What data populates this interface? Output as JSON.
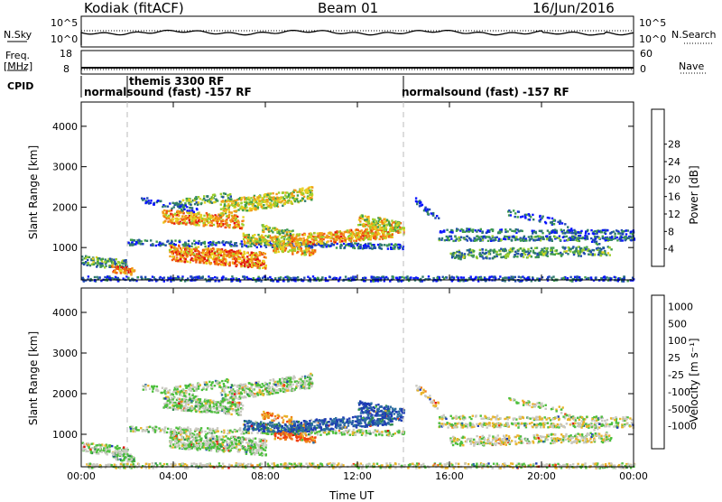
{
  "header": {
    "station": "Kodiak (fitACF)",
    "beam": "Beam 01",
    "date": "16/Jun/2016"
  },
  "side_labels": {
    "nsky": "N.Sky",
    "freq": "Freq.",
    "freq_unit": "[MHz]",
    "cpid": "CPID",
    "nsearch": "N.Search",
    "nave": "Nave"
  },
  "noise_panel": {
    "left_ticks": [
      "10^5",
      "10^0"
    ],
    "right_ticks": [
      "10^5",
      "10^0"
    ]
  },
  "freq_panel": {
    "left_ticks": [
      "18",
      "8"
    ],
    "right_ticks": [
      "60",
      "0"
    ]
  },
  "cpid_panel": {
    "labels": [
      "normalsound (fast) -157 RF",
      "themis 3300 RF",
      "normalsound (fast) -157 RF"
    ]
  },
  "chart_data": [
    {
      "type": "heatmap",
      "quantity": "Power",
      "ylabel": "Slant Range [km]",
      "ylim": [
        200,
        4600
      ],
      "yticks": [
        "1000",
        "2000",
        "3000",
        "4000"
      ],
      "xlim_hours": [
        0,
        24
      ],
      "xticks": [
        "00:00",
        "04:00",
        "08:00",
        "12:00",
        "16:00",
        "20:00",
        "00:00"
      ],
      "colorbar_label": "Power [dB]",
      "colorbar_ticks": [
        "4",
        "8",
        "12",
        "16",
        "20",
        "24",
        "28"
      ],
      "colorbar_colors": [
        "#0a14ff",
        "#1f4ab0",
        "#2f7a6e",
        "#3f9d4a",
        "#9ccf2e",
        "#e8d020",
        "#f29a18",
        "#f05a10",
        "#e01010"
      ]
    },
    {
      "type": "heatmap",
      "quantity": "Velocity",
      "ylabel": "Slant Range [km]",
      "ylim": [
        200,
        4600
      ],
      "yticks": [
        "1000",
        "2000",
        "3000",
        "4000"
      ],
      "xlim_hours": [
        0,
        24
      ],
      "xticks": [
        "00:00",
        "04:00",
        "08:00",
        "12:00",
        "16:00",
        "20:00",
        "00:00"
      ],
      "xlabel": "Time UT",
      "colorbar_label": "Velocity [m s⁻¹]",
      "colorbar_ticks": [
        "1000",
        "500",
        "100",
        "25",
        "-25",
        "-100",
        "-500",
        "-1000"
      ],
      "colorbar_colors": [
        "#1e3cb4",
        "#2c6ea0",
        "#2e8a4a",
        "#4cbf3c",
        "#c8c8c0",
        "#e8b428",
        "#f08018",
        "#f04010",
        "#e01010"
      ]
    }
  ]
}
